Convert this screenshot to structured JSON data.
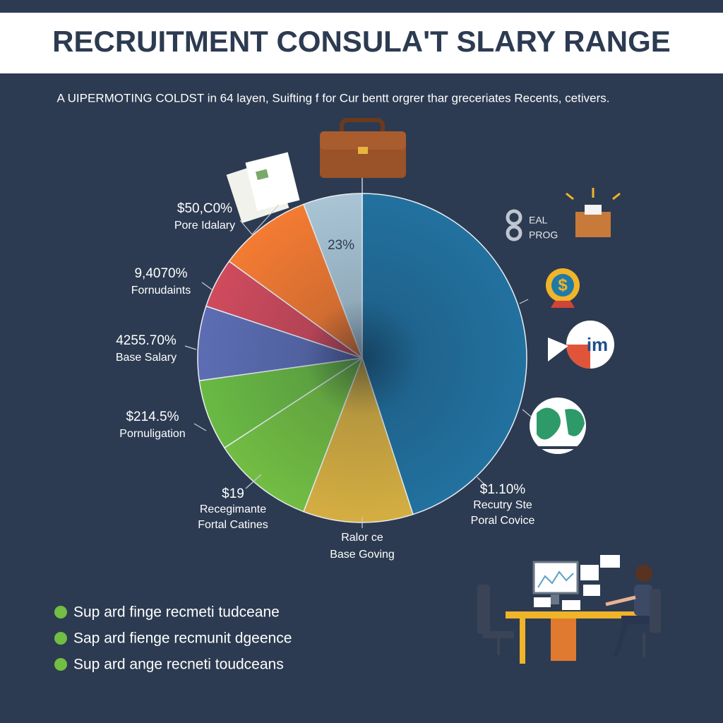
{
  "header": {
    "title": "RECRUITMENT CONSULA'T SLARY RANGE"
  },
  "subtitle": "A UIPERMOTING COLDST in 64 layen, Suifting f for Cur bentt orgrer thar greceriates Recents, cetivers.",
  "chart_data": {
    "type": "pie",
    "values": [
      45,
      10.8,
      10,
      7,
      7.3,
      4.9,
      9.2,
      5.8
    ],
    "colors": [
      "#22719f",
      "#d5ae42",
      "#72bd43",
      "#6ab944",
      "#5c6db3",
      "#cf4b5d",
      "#f47b32",
      "#a9c5d5"
    ]
  },
  "inner_label": "23%",
  "annotations": [
    {
      "lines": [
        "$50,C0%",
        "Pore Idalary"
      ]
    },
    {
      "lines": [
        "9,4070%",
        "Fornudaints"
      ]
    },
    {
      "lines": [
        "4255.70%",
        "Base Salary"
      ]
    },
    {
      "lines": [
        "$214.5%",
        "Pornuligation"
      ]
    },
    {
      "lines": [
        "$19",
        "Recegimante",
        "Fortal Catines"
      ]
    },
    {
      "lines": [
        "Ralor ce",
        "Base Goving"
      ]
    },
    {
      "lines": [
        "$1.10%",
        "Recutry Ste",
        "Poral Covice"
      ]
    }
  ],
  "icon_texts": [
    "EAL",
    "PROG",
    "im"
  ],
  "bullets": [
    "Sup ard finge recmeti tudceane",
    "Sap ard fienge recmunit dgeence",
    "Sup ard ange recneti toudceans"
  ]
}
